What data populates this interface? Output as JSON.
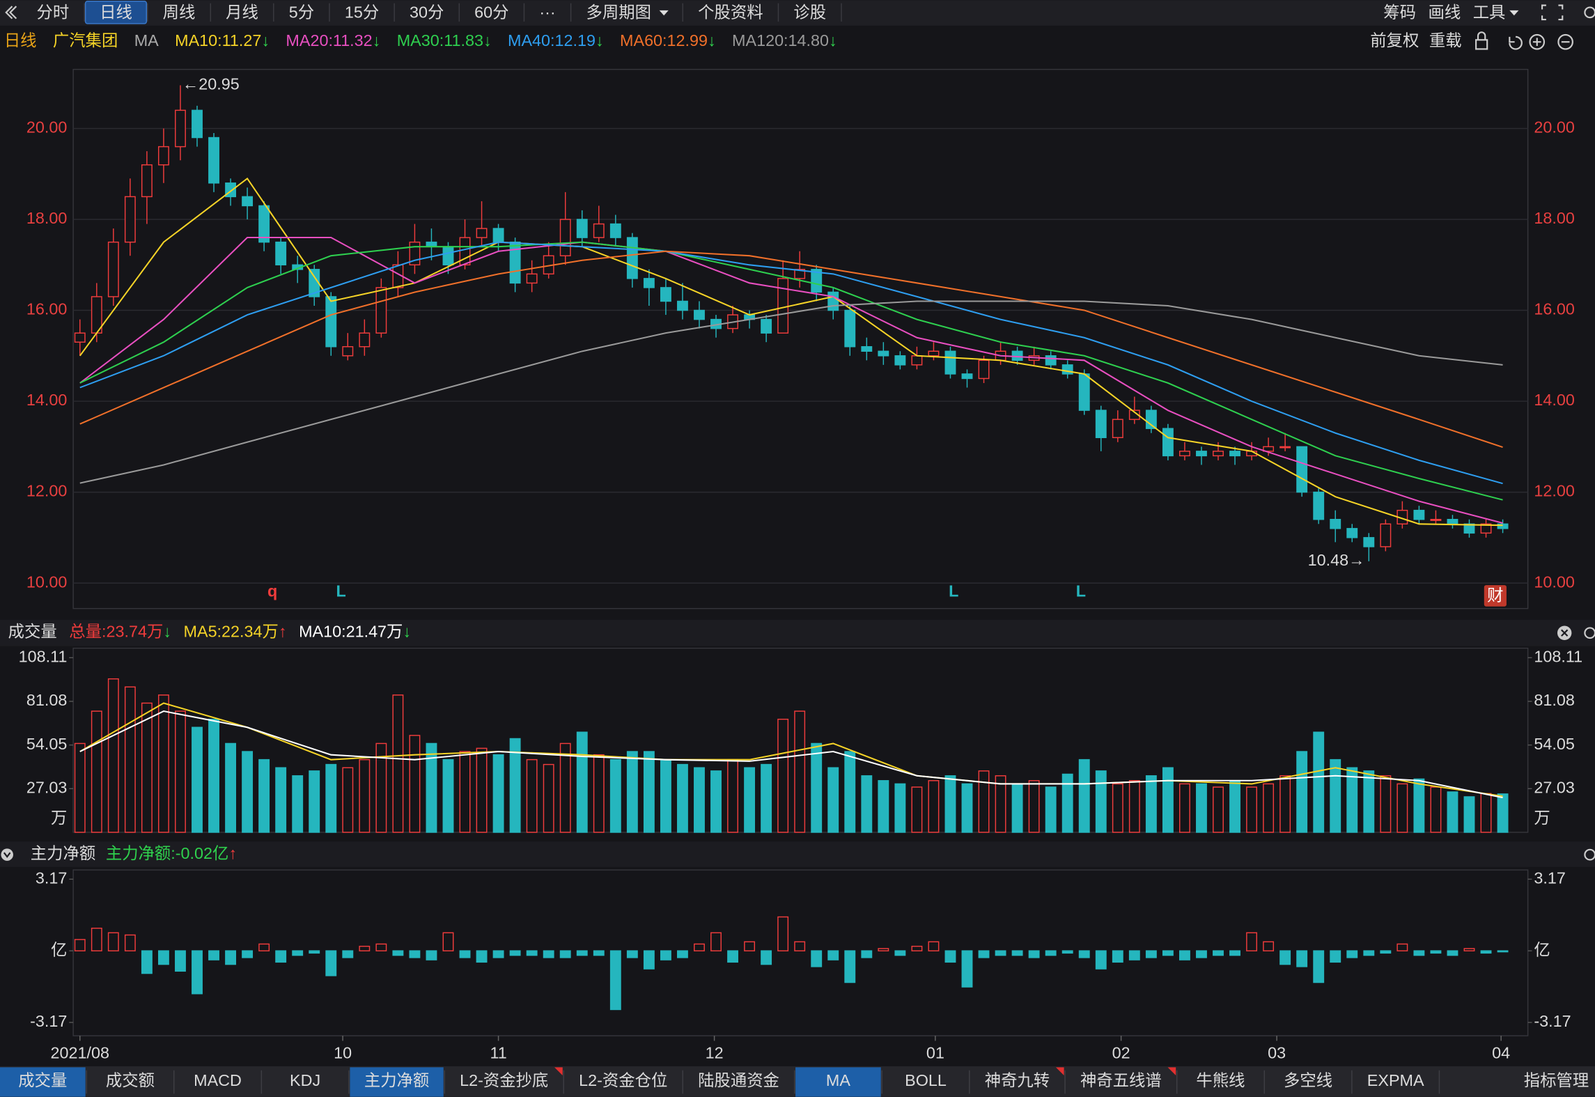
{
  "toolbar": {
    "items": [
      {
        "label": "分时"
      },
      {
        "label": "日线",
        "active": true
      },
      {
        "label": "周线"
      },
      {
        "label": "月线"
      },
      {
        "label": "5分"
      },
      {
        "label": "15分"
      },
      {
        "label": "30分"
      },
      {
        "label": "60分"
      },
      {
        "label": "···"
      },
      {
        "label": "多周期图",
        "dropdown": true
      },
      {
        "label": "个股资料"
      },
      {
        "label": "诊股"
      }
    ],
    "right": [
      {
        "label": "筹码"
      },
      {
        "label": "画线"
      },
      {
        "label": "工具",
        "dropdown": true
      }
    ]
  },
  "chart_data": [
    {
      "type": "candlestick",
      "period": "日线",
      "stock": "广汽集团",
      "indicator": "MA",
      "adjust": "前复权",
      "reload": "重载",
      "up_color": "#f03c3c",
      "down_color": "#25b6be",
      "grid": true,
      "ylim": [
        9.44,
        21.3
      ],
      "yticks": [
        {
          "value": 10,
          "label": "10.00"
        },
        {
          "value": 12,
          "label": "12.00"
        },
        {
          "value": 14,
          "label": "14.00"
        },
        {
          "value": 16,
          "label": "16.00"
        },
        {
          "value": 18,
          "label": "18.00"
        },
        {
          "value": 20,
          "label": "20.00"
        }
      ],
      "xlim": [
        -0.4,
        86.5
      ],
      "xticks": [
        {
          "value": 0,
          "label": "2021/08"
        },
        {
          "value": 15.7,
          "label": "10"
        },
        {
          "value": 25,
          "label": "11"
        },
        {
          "value": 37.9,
          "label": "12"
        },
        {
          "value": 51.1,
          "label": "01"
        },
        {
          "value": 62.2,
          "label": "02"
        },
        {
          "value": 71.5,
          "label": "03"
        },
        {
          "value": 84.9,
          "label": "04"
        }
      ],
      "ohlc": [
        [
          15.3,
          15.8,
          15.0,
          15.5
        ],
        [
          15.5,
          16.6,
          15.3,
          16.3
        ],
        [
          16.3,
          17.8,
          16.1,
          17.5
        ],
        [
          17.5,
          18.9,
          17.2,
          18.5
        ],
        [
          18.5,
          19.5,
          17.9,
          19.2
        ],
        [
          19.2,
          20.0,
          18.8,
          19.6
        ],
        [
          19.6,
          20.95,
          19.3,
          20.4
        ],
        [
          20.4,
          20.5,
          19.6,
          19.8
        ],
        [
          19.8,
          19.9,
          18.6,
          18.8
        ],
        [
          18.8,
          18.9,
          18.3,
          18.5
        ],
        [
          18.5,
          18.7,
          18.0,
          18.3
        ],
        [
          18.3,
          18.4,
          17.3,
          17.5
        ],
        [
          17.5,
          17.6,
          16.8,
          17.0
        ],
        [
          17.0,
          17.2,
          16.6,
          16.9
        ],
        [
          16.9,
          17.0,
          16.1,
          16.3
        ],
        [
          16.3,
          16.4,
          15.0,
          15.2
        ],
        [
          15.0,
          15.5,
          14.9,
          15.2
        ],
        [
          15.2,
          15.8,
          15.0,
          15.5
        ],
        [
          15.5,
          16.7,
          15.4,
          16.5
        ],
        [
          16.5,
          17.3,
          16.3,
          17.0
        ],
        [
          17.0,
          17.9,
          16.8,
          17.5
        ],
        [
          17.5,
          17.8,
          17.1,
          17.4
        ],
        [
          17.4,
          17.5,
          16.8,
          17.0
        ],
        [
          17.0,
          18.0,
          16.9,
          17.6
        ],
        [
          17.6,
          18.4,
          17.4,
          17.8
        ],
        [
          17.8,
          17.9,
          17.3,
          17.5
        ],
        [
          17.5,
          17.6,
          16.4,
          16.6
        ],
        [
          16.6,
          17.1,
          16.4,
          16.8
        ],
        [
          16.8,
          17.5,
          16.7,
          17.2
        ],
        [
          17.2,
          18.6,
          17.0,
          18.0
        ],
        [
          18.0,
          18.2,
          17.4,
          17.6
        ],
        [
          17.6,
          18.3,
          17.5,
          17.9
        ],
        [
          17.9,
          18.1,
          17.4,
          17.6
        ],
        [
          17.6,
          17.7,
          16.5,
          16.7
        ],
        [
          16.7,
          16.9,
          16.1,
          16.5
        ],
        [
          16.5,
          16.7,
          15.9,
          16.2
        ],
        [
          16.2,
          16.6,
          15.8,
          16.0
        ],
        [
          16.0,
          16.2,
          15.6,
          15.8
        ],
        [
          15.8,
          15.9,
          15.4,
          15.6
        ],
        [
          15.6,
          16.1,
          15.5,
          15.9
        ],
        [
          15.9,
          16.0,
          15.6,
          15.8
        ],
        [
          15.8,
          15.9,
          15.3,
          15.5
        ],
        [
          15.5,
          17.1,
          15.5,
          16.7
        ],
        [
          16.7,
          17.3,
          16.5,
          16.9
        ],
        [
          16.9,
          17.0,
          16.2,
          16.4
        ],
        [
          16.4,
          16.5,
          15.8,
          16.0
        ],
        [
          16.0,
          16.1,
          15.0,
          15.2
        ],
        [
          15.2,
          15.4,
          14.9,
          15.1
        ],
        [
          15.1,
          15.3,
          14.8,
          15.0
        ],
        [
          15.0,
          15.1,
          14.7,
          14.8
        ],
        [
          14.8,
          15.2,
          14.7,
          15.0
        ],
        [
          15.0,
          15.3,
          14.9,
          15.1
        ],
        [
          15.1,
          15.2,
          14.5,
          14.6
        ],
        [
          14.6,
          14.7,
          14.3,
          14.5
        ],
        [
          14.5,
          15.0,
          14.4,
          14.9
        ],
        [
          14.9,
          15.3,
          14.8,
          15.1
        ],
        [
          15.1,
          15.2,
          14.8,
          14.9
        ],
        [
          14.9,
          15.2,
          14.8,
          15.0
        ],
        [
          15.0,
          15.1,
          14.7,
          14.8
        ],
        [
          14.8,
          14.9,
          14.5,
          14.6
        ],
        [
          14.6,
          14.7,
          13.7,
          13.8
        ],
        [
          13.8,
          13.9,
          12.9,
          13.2
        ],
        [
          13.2,
          13.8,
          13.1,
          13.6
        ],
        [
          13.6,
          14.1,
          13.5,
          13.8
        ],
        [
          13.8,
          13.9,
          13.3,
          13.4
        ],
        [
          13.4,
          13.5,
          12.7,
          12.8
        ],
        [
          12.8,
          13.1,
          12.7,
          12.9
        ],
        [
          12.9,
          13.0,
          12.6,
          12.8
        ],
        [
          12.8,
          13.1,
          12.7,
          12.9
        ],
        [
          12.9,
          13.0,
          12.6,
          12.8
        ],
        [
          12.8,
          13.1,
          12.7,
          12.9
        ],
        [
          12.9,
          13.2,
          12.8,
          13.0
        ],
        [
          13.0,
          13.3,
          12.9,
          13.0
        ],
        [
          13.0,
          13.0,
          11.9,
          12.0
        ],
        [
          12.0,
          12.1,
          11.3,
          11.4
        ],
        [
          11.4,
          11.6,
          10.9,
          11.2
        ],
        [
          11.2,
          11.3,
          10.9,
          11.0
        ],
        [
          11.0,
          11.1,
          10.48,
          10.8
        ],
        [
          10.8,
          11.4,
          10.7,
          11.3
        ],
        [
          11.3,
          11.8,
          11.2,
          11.6
        ],
        [
          11.6,
          11.7,
          11.3,
          11.4
        ],
        [
          11.4,
          11.6,
          11.3,
          11.4
        ],
        [
          11.4,
          11.5,
          11.2,
          11.3
        ],
        [
          11.3,
          11.4,
          11.0,
          11.1
        ],
        [
          11.1,
          11.4,
          11.0,
          11.3
        ],
        [
          11.3,
          11.4,
          11.1,
          11.2
        ]
      ],
      "ma_x": [
        0,
        5,
        10,
        15,
        20,
        25,
        30,
        35,
        40,
        45,
        50,
        55,
        60,
        65,
        70,
        75,
        80,
        85
      ],
      "series": [
        {
          "name": "MA10:11.27",
          "arrow": "↓",
          "arrow_color": "#2fd14d",
          "color": "#f5d327",
          "values": [
            15.0,
            17.5,
            18.9,
            16.2,
            16.6,
            17.5,
            17.4,
            16.7,
            15.9,
            16.3,
            15.0,
            14.9,
            14.6,
            13.2,
            12.9,
            11.9,
            11.3,
            11.27
          ]
        },
        {
          "name": "MA20:11.32",
          "arrow": "↓",
          "arrow_color": "#2fd14d",
          "color": "#e84fc0",
          "values": [
            14.4,
            15.8,
            17.6,
            17.6,
            16.6,
            17.3,
            17.5,
            17.3,
            16.6,
            16.3,
            15.4,
            15.0,
            14.9,
            13.8,
            13.0,
            12.4,
            11.8,
            11.32
          ]
        },
        {
          "name": "MA30:11.83",
          "arrow": "↓",
          "arrow_color": "#2fd14d",
          "color": "#2ecf4f",
          "values": [
            14.4,
            15.3,
            16.5,
            17.2,
            17.4,
            17.4,
            17.5,
            17.3,
            16.9,
            16.5,
            15.8,
            15.3,
            15.0,
            14.4,
            13.6,
            12.8,
            12.3,
            11.83
          ]
        },
        {
          "name": "MA40:12.19",
          "arrow": "↓",
          "arrow_color": "#2fd14d",
          "color": "#2e9ef0",
          "values": [
            14.3,
            15.0,
            15.9,
            16.5,
            17.1,
            17.5,
            17.4,
            17.3,
            17.0,
            16.8,
            16.3,
            15.8,
            15.4,
            14.8,
            14.0,
            13.3,
            12.7,
            12.19
          ]
        },
        {
          "name": "MA60:12.99",
          "arrow": "↓",
          "arrow_color": "#2fd14d",
          "color": "#f0702a",
          "values": [
            13.5,
            14.3,
            15.1,
            15.9,
            16.4,
            16.8,
            17.1,
            17.3,
            17.2,
            16.9,
            16.6,
            16.3,
            16.0,
            15.4,
            14.8,
            14.2,
            13.6,
            12.99
          ]
        },
        {
          "name": "MA120:14.80",
          "arrow": "↓",
          "arrow_color": "#2fd14d",
          "color": "#9a9a9a",
          "values": [
            12.2,
            12.6,
            13.1,
            13.6,
            14.1,
            14.6,
            15.1,
            15.5,
            15.8,
            16.1,
            16.2,
            16.2,
            16.2,
            16.1,
            15.8,
            15.4,
            15.0,
            14.8
          ]
        }
      ],
      "annotations": [
        {
          "label": "←20.95",
          "index": 6,
          "value": 20.95,
          "side": "right"
        },
        {
          "label": "10.48→",
          "index": 77,
          "value": 10.48,
          "side": "left"
        }
      ],
      "markers": [
        {
          "label": "q",
          "index": 11.5,
          "color": "#f03c3c"
        },
        {
          "label": "L",
          "index": 15.6,
          "color": "#25b6be"
        },
        {
          "label": "L",
          "index": 52.2,
          "color": "#25b6be"
        },
        {
          "label": "L",
          "index": 59.8,
          "color": "#25b6be"
        }
      ],
      "badge": "财"
    },
    {
      "type": "bar",
      "title": "成交量",
      "unit": "万",
      "total": {
        "name": "总量:23.74万",
        "arrow": "↓",
        "arrow_color": "#2fd14d",
        "color": "#f03c3c"
      },
      "ylim": [
        0,
        114
      ],
      "yticks": [
        27.03,
        54.05,
        81.08,
        108.11
      ],
      "values": [
        55,
        75,
        95,
        90,
        80,
        85,
        75,
        65,
        70,
        55,
        50,
        45,
        40,
        35,
        38,
        42,
        40,
        45,
        55,
        85,
        60,
        55,
        45,
        50,
        52,
        48,
        58,
        45,
        42,
        55,
        62,
        48,
        45,
        50,
        50,
        45,
        42,
        40,
        38,
        45,
        40,
        42,
        70,
        75,
        55,
        40,
        50,
        35,
        32,
        30,
        28,
        32,
        35,
        30,
        38,
        35,
        30,
        32,
        28,
        36,
        45,
        38,
        30,
        32,
        35,
        40,
        30,
        30,
        28,
        32,
        28,
        30,
        35,
        50,
        62,
        45,
        40,
        38,
        35,
        30,
        33,
        28,
        25,
        22,
        24,
        23.74
      ],
      "series": [
        {
          "name": "MA5:22.34万",
          "arrow": "↑",
          "arrow_color": "#f03c3c",
          "color": "#f5d327",
          "values": [
            50,
            80,
            65,
            45,
            48,
            50,
            48,
            45,
            45,
            55,
            35,
            30,
            30,
            32,
            30,
            40,
            30,
            22.34
          ]
        },
        {
          "name": "MA10:21.47万",
          "arrow": "↓",
          "arrow_color": "#2fd14d",
          "color": "#ffffff",
          "values": [
            50,
            75,
            65,
            48,
            45,
            50,
            47,
            45,
            44,
            50,
            35,
            30,
            30,
            32,
            32,
            35,
            32,
            21.47
          ]
        }
      ]
    },
    {
      "type": "bar",
      "title": "主力净额",
      "series_label": {
        "name": "主力净额:-0.02亿",
        "arrow": "↑",
        "arrow_color": "#f03c3c",
        "color": "#2fd14d"
      },
      "ylim": [
        -3.76,
        3.58
      ],
      "yticks": [
        3.17,
        {
          "value": 0,
          "label": "亿"
        },
        -3.17
      ],
      "values": [
        0.5,
        1.0,
        0.8,
        0.7,
        -1.0,
        -0.6,
        -0.9,
        -1.9,
        -0.4,
        -0.6,
        -0.3,
        0.3,
        -0.5,
        -0.2,
        -0.1,
        -1.1,
        -0.3,
        0.2,
        0.3,
        -0.2,
        -0.3,
        -0.4,
        0.8,
        -0.3,
        -0.5,
        -0.3,
        -0.2,
        -0.2,
        -0.3,
        -0.3,
        -0.2,
        -0.2,
        -2.6,
        -0.3,
        -0.8,
        -0.4,
        -0.3,
        0.3,
        0.8,
        -0.5,
        0.4,
        -0.6,
        1.5,
        0.4,
        -0.7,
        -0.4,
        -1.4,
        -0.3,
        0.1,
        -0.2,
        0.2,
        0.4,
        -0.5,
        -1.6,
        -0.3,
        -0.2,
        -0.2,
        -0.3,
        -0.2,
        -0.1,
        -0.3,
        -0.8,
        -0.5,
        -0.4,
        -0.3,
        -0.2,
        -0.4,
        -0.3,
        -0.2,
        -0.2,
        0.8,
        0.4,
        -0.6,
        -0.7,
        -1.4,
        -0.5,
        -0.3,
        -0.2,
        -0.1,
        0.3,
        -0.2,
        -0.1,
        -0.2,
        0.1,
        -0.1,
        -0.02
      ]
    }
  ],
  "tabs": {
    "left": [
      {
        "label": "成交量",
        "active": true
      },
      {
        "label": "成交额"
      },
      {
        "label": "MACD"
      },
      {
        "label": "KDJ"
      },
      {
        "label": "主力净额",
        "active": true
      },
      {
        "label": "L2-资金抄底",
        "new": true
      },
      {
        "label": "L2-资金仓位"
      },
      {
        "label": "陆股通资金"
      }
    ],
    "right": [
      {
        "label": "MA",
        "active": true
      },
      {
        "label": "BOLL"
      },
      {
        "label": "神奇九转",
        "new": true
      },
      {
        "label": "神奇五线谱",
        "new": true
      },
      {
        "label": "牛熊线"
      },
      {
        "label": "多空线"
      },
      {
        "label": "EXPMA"
      }
    ],
    "manage": "指标管理"
  }
}
